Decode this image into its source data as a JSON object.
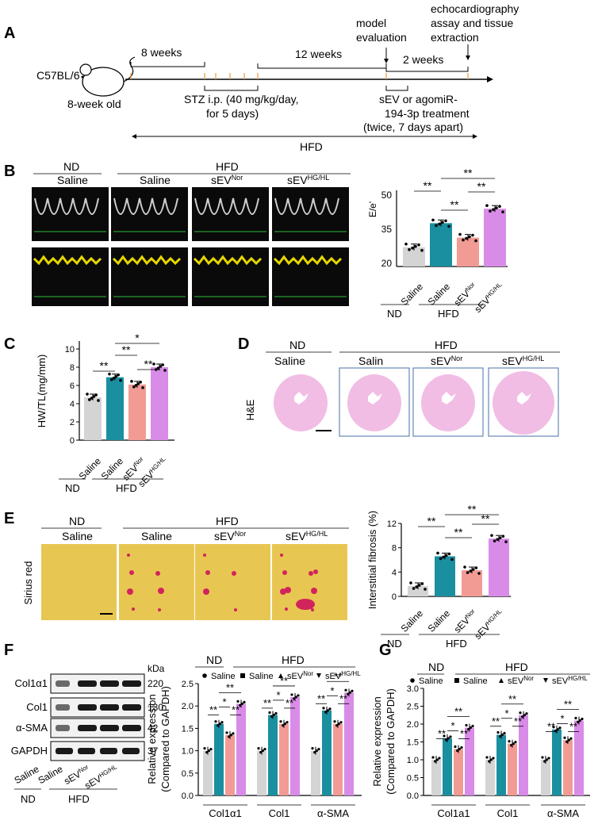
{
  "colors": {
    "gray": "#d4d4d4",
    "teal": "#1a8fa0",
    "salmon": "#f29b95",
    "violet": "#d98be8",
    "echo_bg": "#0a0a0a",
    "heart_pink": "#f1bde4",
    "sirius_yellow": "#e8c652",
    "sirius_red": "#d1245c"
  },
  "panelA": {
    "label": "A",
    "mouse": "C57BL/6",
    "mouse_age": "8-week old",
    "seg1": "8 weeks",
    "seg2": "12 weeks",
    "seg3": "2 weeks",
    "stz": "STZ i.p. (40 mg/kg/day,",
    "stz2": "for 5 days)",
    "model_eval1": "model",
    "model_eval2": "evaluation",
    "echo1": "echocardiography",
    "echo2": "assay and tissue",
    "echo3": "extraction",
    "sev1": "sEV or agomiR-",
    "sev2": "194-3p treatment",
    "sev3": "(twice, 7 days apart)",
    "hfd": "HFD"
  },
  "panelB": {
    "label": "B",
    "nd": "ND",
    "hfd": "HFD",
    "saline": "Saline",
    "sev": "sEV",
    "nor": "Nor",
    "hghl": "HG/HL",
    "ylabel": "E/e'",
    "ticks": [
      "50",
      "35",
      "20"
    ]
  },
  "panelC": {
    "label": "C",
    "ylabel": "HW/TL(mg/mm)",
    "ticks": [
      "10",
      "8",
      "6",
      "4",
      "2",
      "0"
    ]
  },
  "panelD": {
    "label": "D",
    "nd": "ND",
    "hfd": "HFD",
    "saline": "Saline",
    "salin": "Salin",
    "stain": "H&E"
  },
  "panelE": {
    "label": "E",
    "nd": "ND",
    "hfd": "HFD",
    "stain": "Sirius red",
    "ylabel": "Interstitial fibrosis (%)",
    "ticks": [
      "12",
      "8",
      "4",
      "0"
    ]
  },
  "panelF": {
    "label": "F",
    "kda": "kDa",
    "blots": [
      "Col1α1",
      "Col1",
      "α-SMA",
      "GAPDH"
    ],
    "sizes": [
      "220",
      "130",
      "42",
      "37"
    ],
    "ylabel1": "Relative expression",
    "ylabel2": "(Compared to GAPDH)",
    "ticks": [
      "2.5",
      "2.0",
      "1.5",
      "1.0",
      "0.5",
      "0.0"
    ],
    "groups": [
      "Col1α1",
      "Col1",
      "α-SMA"
    ]
  },
  "panelG": {
    "label": "G",
    "ticks": [
      "3.0",
      "2.5",
      "2.0",
      "1.5",
      "1.0",
      "0.5",
      "0.0"
    ],
    "groups": [
      "Col1a1",
      "Col1",
      "α-SMA"
    ]
  },
  "sig": {
    "two": "**",
    "one": "*"
  },
  "chart_data": [
    {
      "type": "bar",
      "ylabel": "E/e'",
      "categories": [
        "Saline (ND)",
        "Saline (HFD)",
        "sEVNor (HFD)",
        "sEVHG/HL (HFD)"
      ],
      "values": [
        28,
        38,
        32,
        44
      ],
      "ylim": [
        20,
        50
      ]
    },
    {
      "type": "bar",
      "ylabel": "HW/TL(mg/mm)",
      "categories": [
        "Saline (ND)",
        "Saline (HFD)",
        "sEVNor (HFD)",
        "sEVHG/HL (HFD)"
      ],
      "values": [
        4.7,
        6.9,
        6.1,
        8.0
      ],
      "ylim": [
        0,
        10
      ]
    },
    {
      "type": "bar",
      "ylabel": "Interstitial fibrosis (%)",
      "categories": [
        "Saline (ND)",
        "Saline (HFD)",
        "sEVNor (HFD)",
        "sEVHG/HL (HFD)"
      ],
      "values": [
        1.7,
        6.6,
        4.3,
        9.5
      ],
      "ylim": [
        0,
        12
      ]
    },
    {
      "type": "bar",
      "ylabel": "Relative expression (Compared to GAPDH)",
      "categories": [
        "Col1α1",
        "Col1",
        "α-SMA"
      ],
      "series": [
        {
          "name": "Saline",
          "values": [
            1.0,
            1.0,
            1.0
          ]
        },
        {
          "name": "Saline",
          "values": [
            1.6,
            1.8,
            1.9
          ]
        },
        {
          "name": "sEVNor",
          "values": [
            1.35,
            1.6,
            1.6
          ]
        },
        {
          "name": "sEVHG/HL",
          "values": [
            2.05,
            2.2,
            2.3
          ]
        }
      ],
      "ylim": [
        0,
        2.5
      ]
    },
    {
      "type": "bar",
      "ylabel": "Relative expression (Compared to GAPDH)",
      "categories": [
        "Col1a1",
        "Col1",
        "α-SMA"
      ],
      "series": [
        {
          "name": "Saline",
          "values": [
            1.0,
            1.0,
            1.0
          ]
        },
        {
          "name": "Saline",
          "values": [
            1.6,
            1.7,
            1.85
          ]
        },
        {
          "name": "sEVNor",
          "values": [
            1.3,
            1.45,
            1.55
          ]
        },
        {
          "name": "sEVHG/HL",
          "values": [
            1.9,
            2.25,
            2.1
          ]
        }
      ],
      "ylim": [
        0,
        3.0
      ]
    }
  ]
}
